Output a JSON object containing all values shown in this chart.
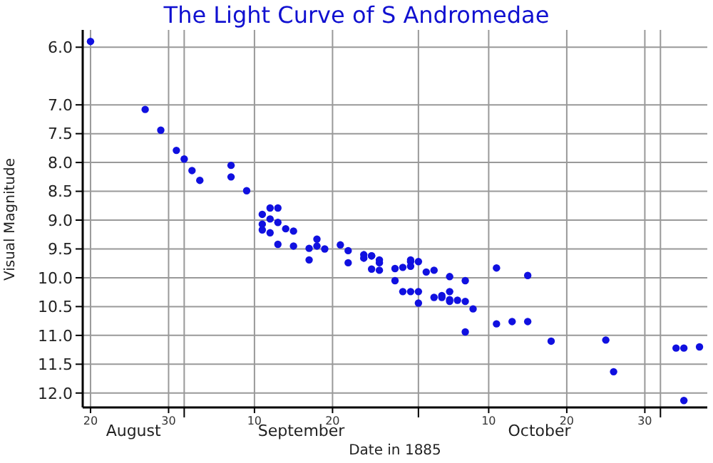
{
  "chart_data": {
    "type": "scatter",
    "title": "The Light Curve of S Andromedae",
    "xlabel": "Date in 1885",
    "ylabel": "Visual Magnitude",
    "xlim": [
      "1885-08-19",
      "1885-11-07"
    ],
    "ylim": [
      12.25,
      5.7
    ],
    "xticks": [
      {
        "value": "1885-08-20",
        "label": "20"
      },
      {
        "value": "1885-08-30",
        "label": "30"
      },
      {
        "value": "1885-09-01",
        "label": null
      },
      {
        "value": "1885-09-10",
        "label": "10"
      },
      {
        "value": "1885-09-20",
        "label": "20"
      },
      {
        "value": "1885-10-01",
        "label": null
      },
      {
        "value": "1885-10-10",
        "label": "10"
      },
      {
        "value": "1885-10-20",
        "label": "20"
      },
      {
        "value": "1885-10-30",
        "label": "30"
      },
      {
        "value": "1885-11-01",
        "label": null
      }
    ],
    "annotations": [
      "August",
      "September",
      "October"
    ],
    "yticks": [
      {
        "value": 6,
        "label": "6.0"
      },
      {
        "value": 7,
        "label": "7.0"
      },
      7.5,
      {
        "value": 8,
        "label": "8.0"
      },
      8.5,
      {
        "value": 9,
        "label": "9.0"
      },
      9.5,
      {
        "value": 10,
        "label": "10.0"
      },
      10.5,
      {
        "value": 11,
        "label": "11.0"
      },
      11.5,
      {
        "value": 12,
        "label": "12.0"
      }
    ],
    "grid": true,
    "marker": "circle",
    "series": [
      {
        "color": "#1010e0",
        "x": [
          "1885-08-20",
          "1885-08-27",
          "1885-08-29",
          "1885-08-31",
          "1885-09-01",
          "1885-09-02",
          "1885-09-03",
          "1885-09-07",
          "1885-09-07",
          "1885-09-09",
          "1885-09-11",
          "1885-09-12",
          "1885-09-13",
          "1885-09-12",
          "1885-09-11",
          "1885-09-11",
          "1885-09-13",
          "1885-09-12",
          "1885-09-13",
          "1885-09-14",
          "1885-09-15",
          "1885-09-15",
          "1885-09-17",
          "1885-09-17",
          "1885-09-18",
          "1885-09-18",
          "1885-09-19",
          "1885-09-21",
          "1885-09-22",
          "1885-09-22",
          "1885-09-24",
          "1885-09-24",
          "1885-09-25",
          "1885-09-25",
          "1885-09-25",
          "1885-09-26",
          "1885-09-26",
          "1885-09-26",
          "1885-09-28",
          "1885-09-29",
          "1885-09-28",
          "1885-09-29",
          "1885-09-30",
          "1885-09-30",
          "1885-09-30",
          "1885-10-01",
          "1885-09-30",
          "1885-10-01",
          "1885-10-01",
          "1885-10-02",
          "1885-10-03",
          "1885-10-03",
          "1885-10-04",
          "1885-10-05",
          "1885-10-05",
          "1885-10-05",
          "1885-10-05",
          "1885-10-06",
          "1885-10-07",
          "1885-10-04",
          "1885-10-07",
          "1885-10-08",
          "1885-10-07",
          "1885-10-11",
          "1885-10-11",
          "1885-10-13",
          "1885-10-15",
          "1885-10-15",
          "1885-10-18",
          "1885-10-25",
          "1885-10-26",
          "1885-11-03",
          "1885-11-04",
          "1885-11-06",
          "1885-11-04"
        ],
        "values": [
          5.9,
          7.08,
          7.44,
          7.79,
          7.94,
          8.14,
          8.31,
          8.05,
          8.25,
          8.49,
          8.9,
          8.79,
          8.79,
          8.98,
          9.07,
          9.17,
          9.04,
          9.22,
          9.42,
          9.15,
          9.19,
          9.45,
          9.49,
          9.69,
          9.33,
          9.45,
          9.5,
          9.43,
          9.53,
          9.74,
          9.6,
          9.66,
          9.62,
          9.62,
          9.85,
          9.74,
          9.69,
          9.87,
          9.84,
          9.82,
          10.05,
          10.24,
          10.24,
          9.69,
          9.72,
          9.72,
          9.8,
          10.44,
          10.24,
          9.9,
          9.87,
          10.34,
          10.31,
          9.98,
          10.24,
          10.38,
          10.41,
          10.39,
          10.05,
          10.34,
          10.41,
          10.54,
          10.94,
          9.83,
          10.8,
          10.76,
          10.76,
          9.96,
          11.1,
          11.08,
          11.63,
          11.22,
          11.22,
          11.2,
          12.13
        ]
      }
    ]
  }
}
